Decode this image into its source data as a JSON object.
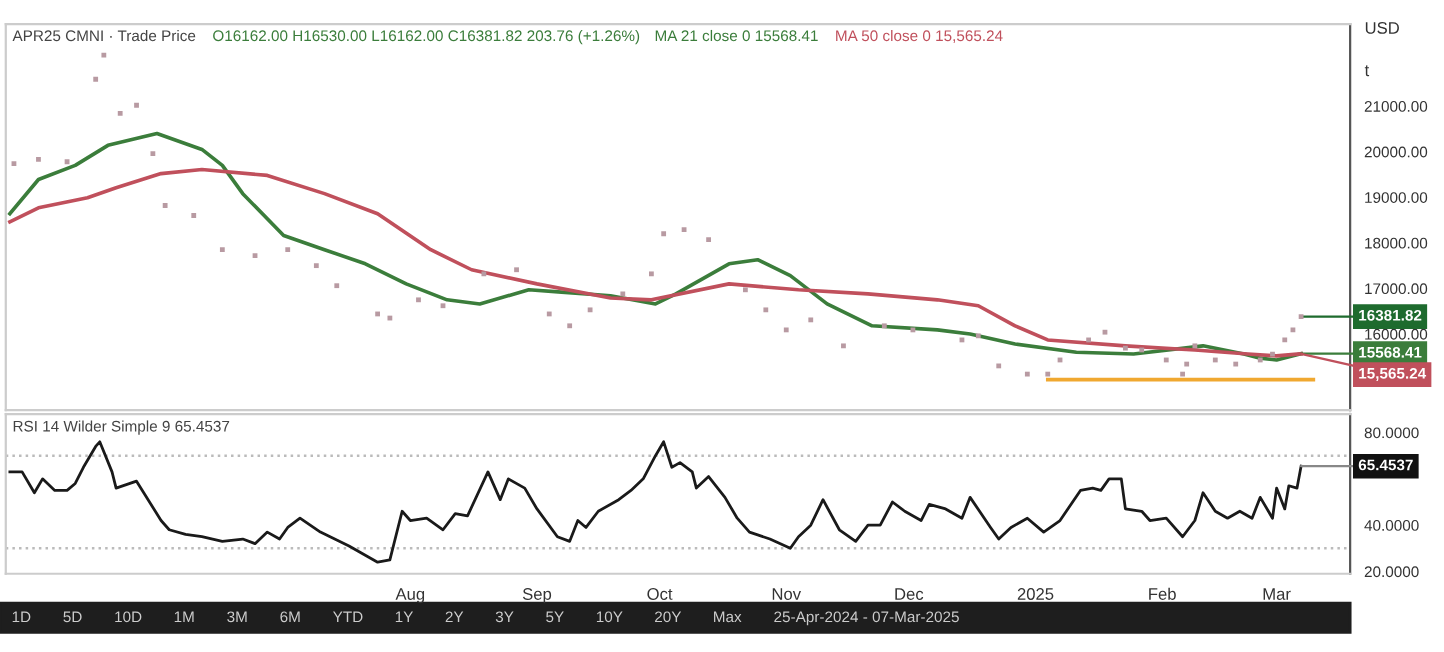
{
  "chart_data": [
    {
      "type": "line",
      "title": "APR25 CMNI · Trade Price",
      "subtitle": "O16162.00 H16530.00 L16162.00 C16381.82 203.76 (+1.26%)",
      "tick_labels": "y",
      "legend": false,
      "series": [
        {
          "type": "scatter",
          "marker": "square",
          "color": "#b89aa2",
          "x": [
            "2024-04-26",
            "2024-05-02",
            "2024-05-09",
            "2024-05-16",
            "2024-05-18",
            "2024-05-22",
            "2024-05-26",
            "2024-05-30",
            "2024-06-02",
            "2024-06-09",
            "2024-06-16",
            "2024-06-24",
            "2024-07-02",
            "2024-07-09",
            "2024-07-14",
            "2024-07-24",
            "2024-07-27",
            "2024-08-03",
            "2024-08-09",
            "2024-08-19",
            "2024-08-27",
            "2024-09-04",
            "2024-09-09",
            "2024-09-14",
            "2024-09-22",
            "2024-09-29",
            "2024-10-02",
            "2024-10-07",
            "2024-10-13",
            "2024-10-22",
            "2024-10-27",
            "2024-11-01",
            "2024-11-07",
            "2024-11-15",
            "2024-11-25",
            "2024-12-02",
            "2024-12-14",
            "2024-12-18",
            "2024-12-23",
            "2024-12-30",
            "2025-01-04",
            "2025-01-07",
            "2025-01-14",
            "2025-01-18",
            "2025-01-23",
            "2025-01-27",
            "2025-02-02",
            "2025-02-06",
            "2025-02-07",
            "2025-02-09",
            "2025-02-14",
            "2025-02-19",
            "2025-02-25",
            "2025-02-28",
            "2025-03-03",
            "2025-03-05",
            "2025-03-07"
          ],
          "values": [
            19740,
            19830,
            19780,
            21590,
            22120,
            20840,
            21020,
            19960,
            18820,
            18600,
            17850,
            17720,
            17850,
            17500,
            17060,
            16440,
            16350,
            16750,
            16620,
            17320,
            17410,
            16440,
            16180,
            16530,
            16880,
            17320,
            18200,
            18290,
            18070,
            16970,
            16530,
            16090,
            16310,
            15740,
            16180,
            16090,
            15870,
            15960,
            15300,
            15120,
            15120,
            15430,
            15870,
            16040,
            15690,
            15650,
            15430,
            15120,
            15340,
            15740,
            15430,
            15340,
            15430,
            15560,
            15870,
            16090,
            16381.82
          ]
        },
        {
          "name": "MA 21 close 0 15568.41",
          "color": "#3b7d3b",
          "x": [
            "2024-04-25",
            "2024-05-02",
            "2024-05-11",
            "2024-05-19",
            "2024-05-31",
            "2024-06-11",
            "2024-06-16",
            "2024-06-21",
            "2024-07-01",
            "2024-07-11",
            "2024-07-21",
            "2024-07-31",
            "2024-08-10",
            "2024-08-18",
            "2024-08-30",
            "2024-09-07",
            "2024-09-19",
            "2024-09-30",
            "2024-10-05",
            "2024-10-18",
            "2024-10-25",
            "2024-11-02",
            "2024-11-11",
            "2024-11-22",
            "2024-12-08",
            "2024-12-16",
            "2024-12-27",
            "2025-01-11",
            "2025-01-25",
            "2025-02-11",
            "2025-02-21",
            "2025-02-25",
            "2025-03-01",
            "2025-03-07"
          ],
          "values": [
            18640,
            19390,
            19700,
            20140,
            20400,
            20050,
            19700,
            19080,
            18160,
            17850,
            17540,
            17100,
            16750,
            16660,
            16970,
            16920,
            16840,
            16660,
            16880,
            17540,
            17630,
            17280,
            16660,
            16180,
            16090,
            16000,
            15780,
            15600,
            15560,
            15740,
            15560,
            15470,
            15430,
            15568.41
          ]
        },
        {
          "name": "MA 50 close 0 15,565.24",
          "color": "#c0505c",
          "x": [
            "2024-04-25",
            "2024-05-02",
            "2024-05-14",
            "2024-05-21",
            "2024-06-01",
            "2024-06-11",
            "2024-06-27",
            "2024-07-11",
            "2024-07-24",
            "2024-08-06",
            "2024-08-16",
            "2024-09-01",
            "2024-09-19",
            "2024-09-29",
            "2024-10-18",
            "2024-11-04",
            "2024-11-21",
            "2024-12-08",
            "2024-12-18",
            "2024-12-27",
            "2025-01-04",
            "2025-01-23",
            "2025-02-09",
            "2025-02-22",
            "2025-03-01",
            "2025-03-07"
          ],
          "values": [
            18460,
            18770,
            18990,
            19210,
            19520,
            19610,
            19480,
            19080,
            18640,
            17850,
            17410,
            17100,
            16790,
            16750,
            17100,
            16970,
            16880,
            16750,
            16620,
            16180,
            15870,
            15740,
            15650,
            15560,
            15520,
            15565.24
          ]
        },
        {
          "color": "#f0a830",
          "x": [
            "2025-01-04",
            "2025-03-10"
          ],
          "values": [
            15000,
            15000
          ]
        }
      ],
      "xlim": [
        "2024-04-24",
        "2025-03-19"
      ],
      "ylim": [
        14330,
        22800
      ],
      "yticks": [
        {
          "value": 16000,
          "label": "16000.00"
        },
        {
          "value": 17000,
          "label": "17000.00"
        },
        {
          "value": 18000,
          "label": "18000.00"
        },
        {
          "value": 19000,
          "label": "19000.00"
        },
        {
          "value": 20000,
          "label": "20000.00"
        },
        {
          "value": 21000,
          "label": "21000.00"
        }
      ],
      "annotations": [
        "USD",
        "t",
        {
          "text": "16381.82",
          "x": "2025-03-07",
          "y": 16381.82
        },
        {
          "text": "15568.41",
          "x": "2025-03-07",
          "y": 15568.41
        },
        {
          "text": "15,565.24",
          "x": "2025-03-07",
          "y": 15565.24
        }
      ]
    },
    {
      "type": "line",
      "legend": false,
      "series": [
        {
          "name": "RSI 14 Wilder Simple 9 65.4537",
          "color": "#1a1a1a",
          "x": [
            "2024-04-25",
            "2024-04-28",
            "2024-05-01",
            "2024-05-03",
            "2024-05-06",
            "2024-05-09",
            "2024-05-11",
            "2024-05-13",
            "2024-05-16",
            "2024-05-17",
            "2024-05-20",
            "2024-05-21",
            "2024-05-26",
            "2024-06-01",
            "2024-06-03",
            "2024-06-07",
            "2024-06-11",
            "2024-06-16",
            "2024-06-21",
            "2024-06-24",
            "2024-06-27",
            "2024-06-30",
            "2024-07-02",
            "2024-07-05",
            "2024-07-10",
            "2024-07-17",
            "2024-07-24",
            "2024-07-27",
            "2024-07-30",
            "2024-08-01",
            "2024-08-05",
            "2024-08-09",
            "2024-08-12",
            "2024-08-15",
            "2024-08-20",
            "2024-08-23",
            "2024-08-25",
            "2024-08-29",
            "2024-09-01",
            "2024-09-06",
            "2024-09-09",
            "2024-09-11",
            "2024-09-13",
            "2024-09-16",
            "2024-09-21",
            "2024-09-24",
            "2024-09-27",
            "2024-09-30",
            "2024-10-02",
            "2024-10-04",
            "2024-10-06",
            "2024-10-09",
            "2024-10-10",
            "2024-10-13",
            "2024-10-17",
            "2024-10-20",
            "2024-10-23",
            "2024-10-28",
            "2024-11-02",
            "2024-11-04",
            "2024-11-07",
            "2024-11-10",
            "2024-11-14",
            "2024-11-18",
            "2024-11-21",
            "2024-11-24",
            "2024-11-27",
            "2024-11-30",
            "2024-12-04",
            "2024-12-06",
            "2024-12-10",
            "2024-12-14",
            "2024-12-16",
            "2024-12-21",
            "2024-12-23",
            "2024-12-26",
            "2024-12-30",
            "2025-01-03",
            "2025-01-07",
            "2025-01-12",
            "2025-01-15",
            "2025-01-17",
            "2025-01-19",
            "2025-01-22",
            "2025-01-23",
            "2025-01-27",
            "2025-01-29",
            "2025-02-02",
            "2025-02-06",
            "2025-02-09",
            "2025-02-11",
            "2025-02-14",
            "2025-02-17",
            "2025-02-20",
            "2025-02-23",
            "2025-02-25",
            "2025-02-28",
            "2025-03-01",
            "2025-03-03",
            "2025-03-04",
            "2025-03-06",
            "2025-03-07"
          ],
          "values": [
            63,
            63,
            54,
            60,
            55,
            55,
            58,
            65,
            74,
            76,
            63,
            56,
            59,
            42,
            38,
            36,
            35,
            33,
            34,
            32,
            37,
            34,
            39,
            43,
            37,
            31,
            24,
            25,
            46,
            42,
            43,
            38,
            45,
            44,
            63,
            51,
            60,
            56,
            47,
            35,
            33,
            42,
            39,
            46,
            51,
            55,
            60,
            70,
            76,
            65,
            67,
            63,
            56,
            61,
            52,
            43,
            37,
            34,
            30,
            35,
            40,
            51,
            38,
            33,
            40,
            40,
            50,
            46,
            42,
            49,
            47,
            43,
            52,
            39,
            34,
            39,
            43,
            37,
            42,
            55,
            56,
            55,
            60,
            60,
            47,
            46,
            42,
            43,
            35,
            42,
            54,
            46,
            43,
            46,
            43,
            52,
            43,
            56,
            47,
            57,
            56,
            65.4537
          ]
        }
      ],
      "xlim": [
        "2024-04-24",
        "2025-03-19"
      ],
      "ylim": [
        19,
        88
      ],
      "yticks": [
        {
          "value": 20,
          "label": "20.0000"
        },
        {
          "value": 40,
          "label": "40.0000"
        },
        {
          "value": 80,
          "label": "80.0000"
        }
      ],
      "xticks": [
        {
          "value": "2024-08-01",
          "label": "Aug"
        },
        {
          "value": "2024-09-01",
          "label": "Sep"
        },
        {
          "value": "2024-10-01",
          "label": "Oct"
        },
        {
          "value": "2024-11-01",
          "label": "Nov"
        },
        {
          "value": "2024-12-01",
          "label": "Dec"
        },
        {
          "value": "2025-01-01",
          "label": "2025"
        },
        {
          "value": "2025-02-01",
          "label": "Feb"
        },
        {
          "value": "2025-03-01",
          "label": "Mar"
        }
      ],
      "ref_lines": [
        {
          "axis": "y",
          "value": 70,
          "line_style": "dotted",
          "color": "#bbbbbb"
        },
        {
          "axis": "y",
          "value": 30,
          "line_style": "dotted",
          "color": "#bbbbbb"
        }
      ],
      "annotations": [
        {
          "text": "65.4537",
          "x": "2025-03-07",
          "y": 65.4537
        },
        "1D",
        "5D",
        "10D",
        "1M",
        "3M",
        "6M",
        "YTD",
        "1Y",
        "2Y",
        "3Y",
        "5Y",
        "10Y",
        "20Y",
        "Max",
        "25-Apr-2024 - 07-Mar-2025"
      ]
    }
  ]
}
